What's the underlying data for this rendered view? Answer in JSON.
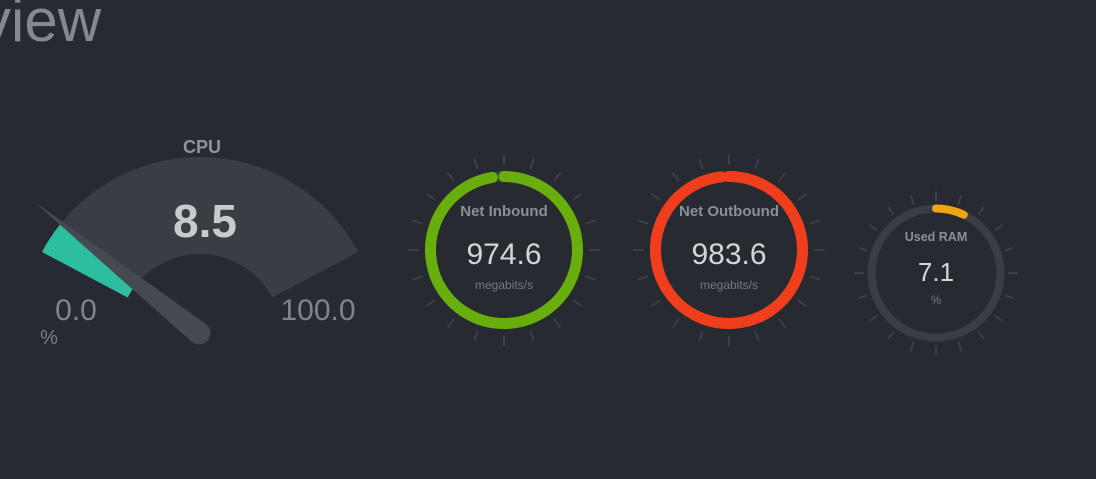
{
  "page": {
    "title_fragment": "view"
  },
  "theme": {
    "background": "#272a30",
    "gauge_track": "#393d44",
    "tick_color": "#3b3f46",
    "needle_color": "#454a51"
  },
  "cpu_gauge": {
    "label": "CPU",
    "value": "8.5",
    "percent": 8.5,
    "min_label": "0.0",
    "max_label": "100.0",
    "unit": "%",
    "fill_color": "#2DBEA0"
  },
  "circle_gauges": [
    {
      "id": "net-inbound",
      "label": "Net Inbound",
      "value": "974.6",
      "unit": "megabits/s",
      "percent": 97.46,
      "color": "#68AF0D"
    },
    {
      "id": "net-outbound",
      "label": "Net Outbound",
      "value": "983.6",
      "unit": "megabits/s",
      "percent": 98.36,
      "color": "#F03E1C"
    },
    {
      "id": "used-ram",
      "label": "Used RAM",
      "value": "7.1",
      "unit": "%",
      "percent": 7.1,
      "color": "#F0A416"
    }
  ]
}
